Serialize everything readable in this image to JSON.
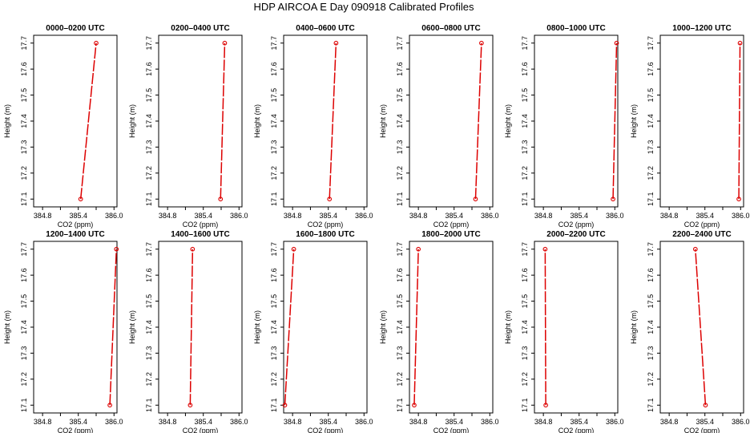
{
  "figure": {
    "title": "HDP AIRCOA E  Day 090918  Calibrated Profiles"
  },
  "chart_data": [
    {
      "type": "line",
      "title": "0000–0200 UTC",
      "xlabel": "CO2 (ppm)",
      "ylabel": "Height (m)",
      "xlim": [
        384.65,
        386.05
      ],
      "ylim": [
        17.07,
        17.73
      ],
      "xticks": [
        "384.8",
        "385.4",
        "386.0"
      ],
      "yticks": [
        "17.1",
        "17.2",
        "17.3",
        "17.4",
        "17.5",
        "17.6",
        "17.7"
      ],
      "points": [
        {
          "x": 385.44,
          "y": 17.1
        },
        {
          "x": 385.7,
          "y": 17.7
        }
      ],
      "color": "#dd0000"
    },
    {
      "type": "line",
      "title": "0200–0400 UTC",
      "xlabel": "CO2 (ppm)",
      "ylabel": "Height (m)",
      "xlim": [
        384.65,
        386.05
      ],
      "ylim": [
        17.07,
        17.73
      ],
      "xticks": [
        "384.8",
        "385.4",
        "386.0"
      ],
      "yticks": [
        "17.1",
        "17.2",
        "17.3",
        "17.4",
        "17.5",
        "17.6",
        "17.7"
      ],
      "points": [
        {
          "x": 385.69,
          "y": 17.1
        },
        {
          "x": 385.76,
          "y": 17.7
        }
      ],
      "color": "#dd0000"
    },
    {
      "type": "line",
      "title": "0400–0600 UTC",
      "xlabel": "CO2 (ppm)",
      "ylabel": "Height (m)",
      "xlim": [
        384.65,
        386.05
      ],
      "ylim": [
        17.07,
        17.73
      ],
      "xticks": [
        "384.8",
        "385.4",
        "386.0"
      ],
      "yticks": [
        "17.1",
        "17.2",
        "17.3",
        "17.4",
        "17.5",
        "17.6",
        "17.7"
      ],
      "points": [
        {
          "x": 385.42,
          "y": 17.1
        },
        {
          "x": 385.53,
          "y": 17.7
        }
      ],
      "color": "#dd0000"
    },
    {
      "type": "line",
      "title": "0600–0800 UTC",
      "xlabel": "CO2 (ppm)",
      "ylabel": "Height (m)",
      "xlim": [
        384.65,
        386.05
      ],
      "ylim": [
        17.07,
        17.73
      ],
      "xticks": [
        "384.8",
        "385.4",
        "386.0"
      ],
      "yticks": [
        "17.1",
        "17.2",
        "17.3",
        "17.4",
        "17.5",
        "17.6",
        "17.7"
      ],
      "points": [
        {
          "x": 385.76,
          "y": 17.1
        },
        {
          "x": 385.86,
          "y": 17.7
        }
      ],
      "color": "#dd0000"
    },
    {
      "type": "line",
      "title": "0800–1000 UTC",
      "xlabel": "CO2 (ppm)",
      "ylabel": "Height (m)",
      "xlim": [
        384.65,
        386.05
      ],
      "ylim": [
        17.07,
        17.73
      ],
      "xticks": [
        "384.8",
        "385.4",
        "386.0"
      ],
      "yticks": [
        "17.1",
        "17.2",
        "17.3",
        "17.4",
        "17.5",
        "17.6",
        "17.7"
      ],
      "points": [
        {
          "x": 385.97,
          "y": 17.1
        },
        {
          "x": 386.03,
          "y": 17.7
        }
      ],
      "color": "#dd0000"
    },
    {
      "type": "line",
      "title": "1000–1200 UTC",
      "xlabel": "CO2 (ppm)",
      "ylabel": "Height (m)",
      "xlim": [
        384.65,
        386.05
      ],
      "ylim": [
        17.07,
        17.73
      ],
      "xticks": [
        "384.8",
        "385.4",
        "386.0"
      ],
      "yticks": [
        "17.1",
        "17.2",
        "17.3",
        "17.4",
        "17.5",
        "17.6",
        "17.7"
      ],
      "points": [
        {
          "x": 385.97,
          "y": 17.1
        },
        {
          "x": 385.99,
          "y": 17.7
        }
      ],
      "color": "#dd0000"
    },
    {
      "type": "line",
      "title": "1200–1400 UTC",
      "xlabel": "CO2 (ppm)",
      "ylabel": "Height (m)",
      "xlim": [
        384.65,
        386.05
      ],
      "ylim": [
        17.07,
        17.73
      ],
      "xticks": [
        "384.8",
        "385.4",
        "386.0"
      ],
      "yticks": [
        "17.1",
        "17.2",
        "17.3",
        "17.4",
        "17.5",
        "17.6",
        "17.7"
      ],
      "points": [
        {
          "x": 385.93,
          "y": 17.1
        },
        {
          "x": 386.04,
          "y": 17.7
        }
      ],
      "color": "#dd0000"
    },
    {
      "type": "line",
      "title": "1400–1600 UTC",
      "xlabel": "CO2 (ppm)",
      "ylabel": "Height (m)",
      "xlim": [
        384.65,
        386.05
      ],
      "ylim": [
        17.07,
        17.73
      ],
      "xticks": [
        "384.8",
        "385.4",
        "386.0"
      ],
      "yticks": [
        "17.1",
        "17.2",
        "17.3",
        "17.4",
        "17.5",
        "17.6",
        "17.7"
      ],
      "points": [
        {
          "x": 385.18,
          "y": 17.1
        },
        {
          "x": 385.22,
          "y": 17.7
        }
      ],
      "color": "#dd0000"
    },
    {
      "type": "line",
      "title": "1600–1800 UTC",
      "xlabel": "CO2 (ppm)",
      "ylabel": "Height (m)",
      "xlim": [
        384.65,
        386.05
      ],
      "ylim": [
        17.07,
        17.73
      ],
      "xticks": [
        "384.8",
        "385.4",
        "386.0"
      ],
      "yticks": [
        "17.1",
        "17.2",
        "17.3",
        "17.4",
        "17.5",
        "17.6",
        "17.7"
      ],
      "points": [
        {
          "x": 384.67,
          "y": 17.1
        },
        {
          "x": 384.82,
          "y": 17.7
        }
      ],
      "color": "#dd0000"
    },
    {
      "type": "line",
      "title": "1800–2000 UTC",
      "xlabel": "CO2 (ppm)",
      "ylabel": "Height (m)",
      "xlim": [
        384.65,
        386.05
      ],
      "ylim": [
        17.07,
        17.73
      ],
      "xticks": [
        "384.8",
        "385.4",
        "386.0"
      ],
      "yticks": [
        "17.1",
        "17.2",
        "17.3",
        "17.4",
        "17.5",
        "17.6",
        "17.7"
      ],
      "points": [
        {
          "x": 384.73,
          "y": 17.1
        },
        {
          "x": 384.8,
          "y": 17.7
        }
      ],
      "color": "#dd0000"
    },
    {
      "type": "line",
      "title": "2000–2200 UTC",
      "xlabel": "CO2 (ppm)",
      "ylabel": "Height (m)",
      "xlim": [
        384.65,
        386.05
      ],
      "ylim": [
        17.07,
        17.73
      ],
      "xticks": [
        "384.8",
        "385.4",
        "386.0"
      ],
      "yticks": [
        "17.1",
        "17.2",
        "17.3",
        "17.4",
        "17.5",
        "17.6",
        "17.7"
      ],
      "points": [
        {
          "x": 384.84,
          "y": 17.1
        },
        {
          "x": 384.83,
          "y": 17.7
        }
      ],
      "color": "#dd0000"
    },
    {
      "type": "line",
      "title": "2200–2400 UTC",
      "xlabel": "CO2 (ppm)",
      "ylabel": "Height (m)",
      "xlim": [
        384.65,
        386.05
      ],
      "ylim": [
        17.07,
        17.73
      ],
      "xticks": [
        "384.8",
        "385.4",
        "386.0"
      ],
      "yticks": [
        "17.1",
        "17.2",
        "17.3",
        "17.4",
        "17.5",
        "17.6",
        "17.7"
      ],
      "points": [
        {
          "x": 385.41,
          "y": 17.1
        },
        {
          "x": 385.24,
          "y": 17.7
        }
      ],
      "color": "#dd0000"
    }
  ]
}
